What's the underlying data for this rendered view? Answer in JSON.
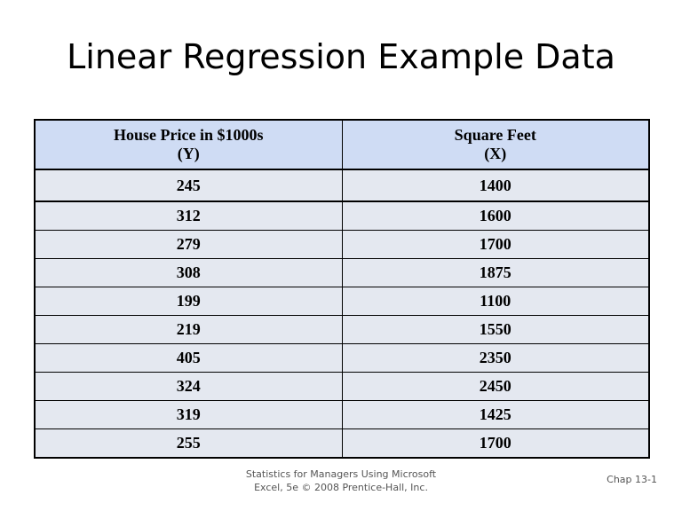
{
  "slide": {
    "title": "Linear Regression Example Data"
  },
  "table": {
    "headers": [
      {
        "line1": "House Price in $1000s",
        "line2": "(Y)"
      },
      {
        "line1": "Square Feet",
        "line2": "(X)"
      }
    ],
    "rows": [
      [
        "245",
        "1400"
      ],
      [
        "312",
        "1600"
      ],
      [
        "279",
        "1700"
      ],
      [
        "308",
        "1875"
      ],
      [
        "199",
        "1100"
      ],
      [
        "219",
        "1550"
      ],
      [
        "405",
        "2350"
      ],
      [
        "324",
        "2450"
      ],
      [
        "319",
        "1425"
      ],
      [
        "255",
        "1700"
      ]
    ]
  },
  "footer": {
    "source_line1": "Statistics for Managers Using Microsoft",
    "source_line2": "Excel, 5e © 2008 Prentice-Hall, Inc.",
    "slide_number": "Chap 13-1"
  },
  "colors": {
    "header_fill": "#cfdcf4",
    "row_fill": "#e4e8f0",
    "border": "#000000"
  }
}
